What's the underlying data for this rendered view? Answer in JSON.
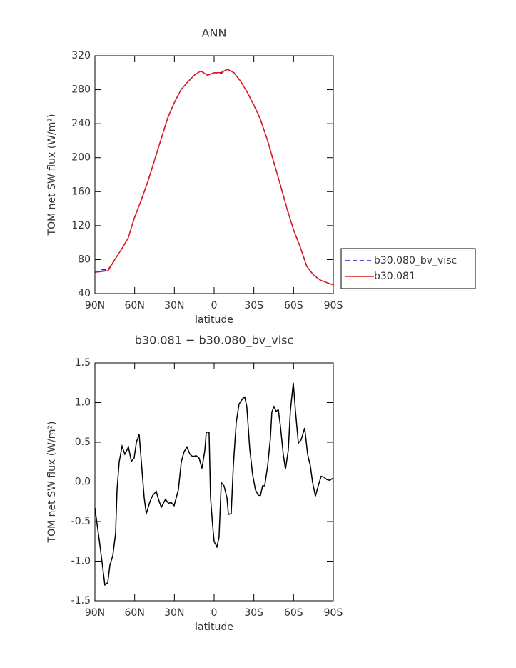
{
  "chart_data": [
    {
      "type": "line",
      "title": "ANN",
      "x_label": "latitude",
      "y_label": "TOM net SW flux (W/m²)",
      "x": [
        90,
        85,
        80,
        75,
        70,
        65,
        60,
        55,
        50,
        45,
        40,
        35,
        30,
        25,
        20,
        15,
        10,
        5,
        0,
        -5,
        -10,
        -15,
        -20,
        -25,
        -30,
        -35,
        -40,
        -45,
        -50,
        -55,
        -60,
        -65,
        -70,
        -75,
        -80,
        -85,
        -90
      ],
      "xlim": [
        90,
        -90
      ],
      "xticks": [
        {
          "value": 90,
          "label": "90N"
        },
        {
          "value": 60,
          "label": "60N"
        },
        {
          "value": 30,
          "label": "30N"
        },
        0,
        {
          "value": -30,
          "label": "30S"
        },
        {
          "value": -60,
          "label": "60S"
        },
        {
          "value": -90,
          "label": "90S"
        }
      ],
      "ylim": [
        40,
        320
      ],
      "yticks": [
        40,
        80,
        120,
        160,
        200,
        240,
        280,
        320
      ],
      "legend": "outside-right",
      "series": [
        {
          "name": "b30.080_bv_visc",
          "color": "#1f1fd0",
          "style": "dashed",
          "values": [
            65,
            68,
            68,
            80,
            92,
            105,
            130,
            150,
            172,
            197,
            222,
            247,
            265,
            280,
            289,
            297,
            302,
            297,
            300,
            299,
            304,
            300,
            290,
            277,
            262,
            245,
            222,
            195,
            168,
            140,
            115,
            95,
            72,
            62,
            56,
            53,
            50
          ]
        },
        {
          "name": "b30.081",
          "color": "#e01818",
          "style": "solid",
          "values": [
            65,
            66,
            67,
            80,
            92,
            105,
            130,
            150,
            172,
            197,
            222,
            247,
            265,
            280,
            289,
            297,
            302,
            297,
            300,
            300,
            304,
            300,
            290,
            277,
            262,
            245,
            222,
            195,
            168,
            140,
            115,
            95,
            72,
            62,
            56,
            53,
            50
          ]
        }
      ]
    },
    {
      "type": "line",
      "title": "b30.081 − b30.080_bv_visc",
      "x_label": "latitude",
      "y_label": "TOM net SW flux (W/m²)",
      "x": [
        90,
        86.2,
        82.5,
        80.3,
        78.7,
        76.5,
        74.4,
        73.3,
        71.7,
        69.5,
        67.4,
        64.7,
        62.5,
        60.4,
        58.7,
        56.6,
        52.8,
        51.2,
        48.5,
        46.4,
        43.7,
        42,
        39.9,
        36.7,
        34.5,
        32.4,
        30.2,
        27,
        24.8,
        22.7,
        20.5,
        18.3,
        16.2,
        13.5,
        11.3,
        9.2,
        7,
        5.9,
        3.8,
        2.7,
        1.1,
        0,
        -2.1,
        -3.7,
        -5.4,
        -7.5,
        -9.7,
        -10.8,
        -12.9,
        -14.5,
        -16.7,
        -18.8,
        -21.5,
        -23.1,
        -24.7,
        -26.9,
        -29,
        -31.2,
        -33.4,
        -35,
        -36.6,
        -38.2,
        -40.4,
        -42.5,
        -43.6,
        -45.2,
        -46.8,
        -48.5,
        -50.1,
        -52.2,
        -53.9,
        -56,
        -57.6,
        -59.8,
        -61.4,
        -63.6,
        -65.7,
        -68.4,
        -70.6,
        -72.7,
        -74.3,
        -76.5,
        -78.6,
        -80.8,
        -82.9,
        -85.1,
        -87.3,
        -90
      ],
      "xlim": [
        90,
        -90
      ],
      "xticks": [
        {
          "value": 90,
          "label": "90N"
        },
        {
          "value": 60,
          "label": "60N"
        },
        {
          "value": 30,
          "label": "30N"
        },
        0,
        {
          "value": -30,
          "label": "30S"
        },
        {
          "value": -60,
          "label": "60S"
        },
        {
          "value": -90,
          "label": "90S"
        }
      ],
      "ylim": [
        -1.5,
        1.5
      ],
      "yticks": [
        -1.5,
        {
          "value": -1,
          "label": "-1.0"
        },
        -0.5,
        {
          "value": 0,
          "label": "0.0"
        },
        0.5,
        {
          "value": 1,
          "label": "1.0"
        },
        1.5
      ],
      "series": [
        {
          "color": "#000000",
          "style": "solid",
          "values": [
            -0.33,
            -0.8,
            -1.3,
            -1.27,
            -1.05,
            -0.93,
            -0.65,
            -0.1,
            0.25,
            0.45,
            0.35,
            0.44,
            0.26,
            0.3,
            0.5,
            0.6,
            -0.2,
            -0.4,
            -0.25,
            -0.17,
            -0.12,
            -0.22,
            -0.32,
            -0.22,
            -0.27,
            -0.26,
            -0.3,
            -0.1,
            0.25,
            0.38,
            0.44,
            0.35,
            0.32,
            0.33,
            0.3,
            0.17,
            0.4,
            0.63,
            0.62,
            -0.2,
            -0.55,
            -0.75,
            -0.82,
            -0.7,
            -0.01,
            -0.05,
            -0.2,
            -0.41,
            -0.4,
            0.2,
            0.75,
            0.98,
            1.05,
            1.07,
            0.95,
            0.42,
            0.1,
            -0.1,
            -0.17,
            -0.17,
            -0.05,
            -0.05,
            0.2,
            0.55,
            0.88,
            0.95,
            0.89,
            0.91,
            0.7,
            0.35,
            0.16,
            0.4,
            0.9,
            1.25,
            0.9,
            0.49,
            0.53,
            0.68,
            0.35,
            0.2,
            0,
            -0.18,
            -0.05,
            0.07,
            0.06,
            0.03,
            0.02,
            0.05
          ]
        }
      ]
    }
  ]
}
